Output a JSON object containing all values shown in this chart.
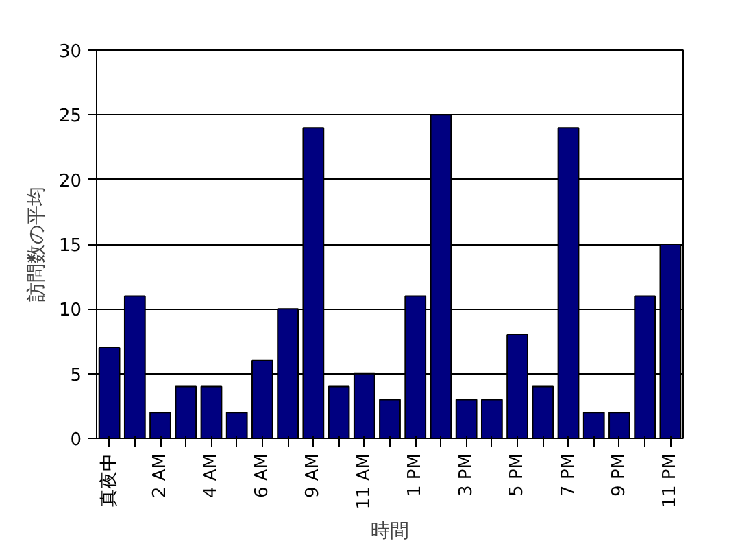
{
  "chart_data": {
    "type": "bar",
    "xlabel": "時間",
    "ylabel": "訪問数の平均",
    "categories": [
      "真夜中",
      null,
      "2 AM",
      null,
      "4 AM",
      null,
      "6 AM",
      null,
      "9 AM",
      null,
      "11 AM",
      null,
      "1 PM",
      null,
      "3 PM",
      null,
      "5 PM",
      null,
      "7 PM",
      null,
      "9 PM",
      null,
      "11 PM"
    ],
    "values": [
      7,
      11,
      2,
      4,
      4,
      2,
      6,
      10,
      24,
      4,
      5,
      3,
      11,
      25,
      3,
      3,
      8,
      4,
      24,
      2,
      2,
      11,
      15
    ],
    "color": "#000080",
    "ylim": [
      0,
      30
    ],
    "yticks": [
      0,
      5,
      10,
      15,
      20,
      25,
      30
    ],
    "grid": "y"
  }
}
